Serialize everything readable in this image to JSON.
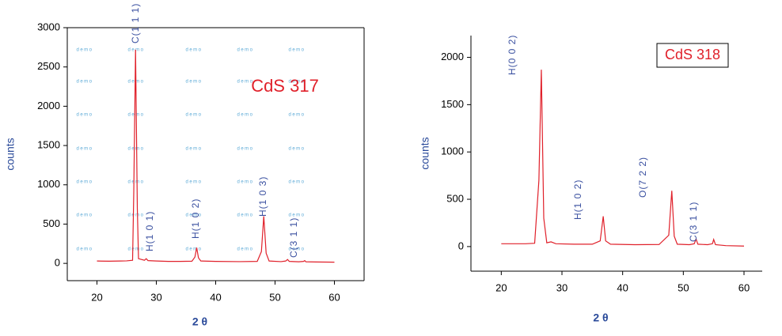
{
  "chart_data": [
    {
      "type": "line",
      "title": "CdS 317",
      "xlabel": "2 θ",
      "ylabel": "counts",
      "watermark": "demo",
      "annotations": [
        "C(1 1 1)",
        "H(1 0 1)",
        "H(1 0 2)",
        "H(1 0 3)",
        "C(3 1 1)"
      ],
      "x": [
        20,
        22,
        24,
        25,
        26,
        26.2,
        26.5,
        26.8,
        27,
        28,
        28.3,
        28.6,
        30,
        32,
        34,
        36,
        36.5,
        36.8,
        37.1,
        37.5,
        40,
        44,
        47,
        47.7,
        48.1,
        48.5,
        49,
        51,
        51.8,
        52.1,
        52.4,
        54,
        54.8,
        55,
        55.2,
        57,
        60
      ],
      "values": [
        30,
        28,
        30,
        32,
        40,
        900,
        2720,
        700,
        60,
        40,
        60,
        35,
        30,
        25,
        25,
        28,
        80,
        200,
        70,
        30,
        25,
        22,
        25,
        150,
        600,
        130,
        30,
        22,
        30,
        50,
        25,
        20,
        25,
        35,
        20,
        18,
        15
      ],
      "color": "#e0202a",
      "xlim": [
        15,
        65
      ],
      "xticks": [
        20,
        30,
        40,
        50,
        60
      ],
      "ylim": [
        -220,
        3000
      ],
      "yticks": [
        0,
        500,
        1000,
        1500,
        2000,
        2500,
        3000
      ],
      "frame": true
    },
    {
      "type": "line",
      "title": "CdS 318",
      "xlabel": "2 θ",
      "ylabel": "counts",
      "annotations": [
        "H(0 0 2)",
        "H(1 0 2)",
        "O(7 2 2)",
        "C(3 1 1)"
      ],
      "x": [
        20,
        22,
        24,
        25.5,
        26.2,
        26.6,
        27,
        27.5,
        28.2,
        29,
        32,
        35,
        36.3,
        36.8,
        37.2,
        38,
        42,
        46,
        47.6,
        48.1,
        48.5,
        49,
        51,
        51.8,
        52.1,
        52.4,
        54,
        54.8,
        55,
        55.3,
        57,
        60
      ],
      "values": [
        30,
        30,
        30,
        35,
        700,
        1870,
        300,
        40,
        50,
        30,
        25,
        25,
        60,
        320,
        60,
        25,
        20,
        22,
        120,
        590,
        110,
        25,
        20,
        30,
        80,
        25,
        20,
        30,
        75,
        20,
        10,
        5
      ],
      "color": "#e0202a",
      "xlim": [
        15,
        63
      ],
      "xticks": [
        20,
        30,
        40,
        50,
        60
      ],
      "ylim": [
        -260,
        2230
      ],
      "yticks": [
        0,
        500,
        1000,
        1500,
        2000
      ],
      "frame": false
    }
  ]
}
